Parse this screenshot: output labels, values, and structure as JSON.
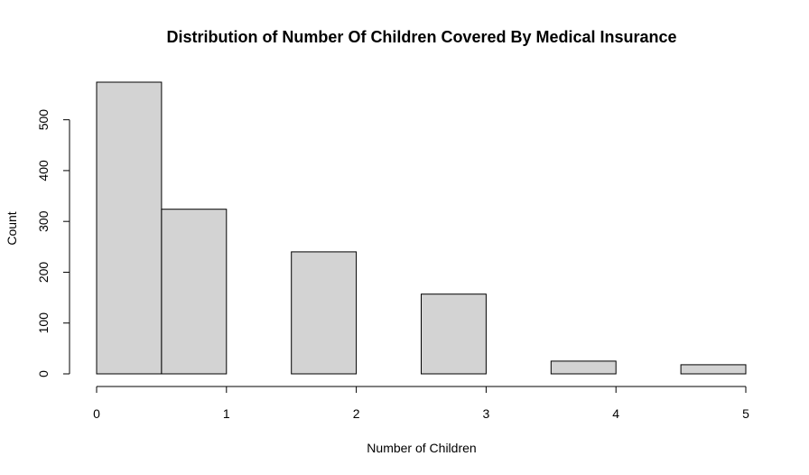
{
  "chart_data": {
    "type": "bar",
    "title": "Distribution of Number Of Children Covered By Medical Insurance",
    "xlabel": "Number of Children",
    "ylabel": "Count",
    "bins": [
      {
        "x0": 0.0,
        "x1": 0.5,
        "count": 574
      },
      {
        "x0": 0.5,
        "x1": 1.0,
        "count": 324
      },
      {
        "x0": 1.0,
        "x1": 1.5,
        "count": 0
      },
      {
        "x0": 1.5,
        "x1": 2.0,
        "count": 240
      },
      {
        "x0": 2.0,
        "x1": 2.5,
        "count": 0
      },
      {
        "x0": 2.5,
        "x1": 3.0,
        "count": 157
      },
      {
        "x0": 3.0,
        "x1": 3.5,
        "count": 0
      },
      {
        "x0": 3.5,
        "x1": 4.0,
        "count": 25
      },
      {
        "x0": 4.0,
        "x1": 4.5,
        "count": 0
      },
      {
        "x0": 4.5,
        "x1": 5.0,
        "count": 18
      }
    ],
    "xlim": [
      0,
      5
    ],
    "ylim": [
      0,
      574
    ],
    "x_ticks": [
      "0",
      "1",
      "2",
      "3",
      "4",
      "5"
    ],
    "y_ticks": [
      "0",
      "100",
      "200",
      "300",
      "400",
      "500"
    ],
    "bar_color": "#d3d3d3",
    "grid": false,
    "legend": false
  }
}
